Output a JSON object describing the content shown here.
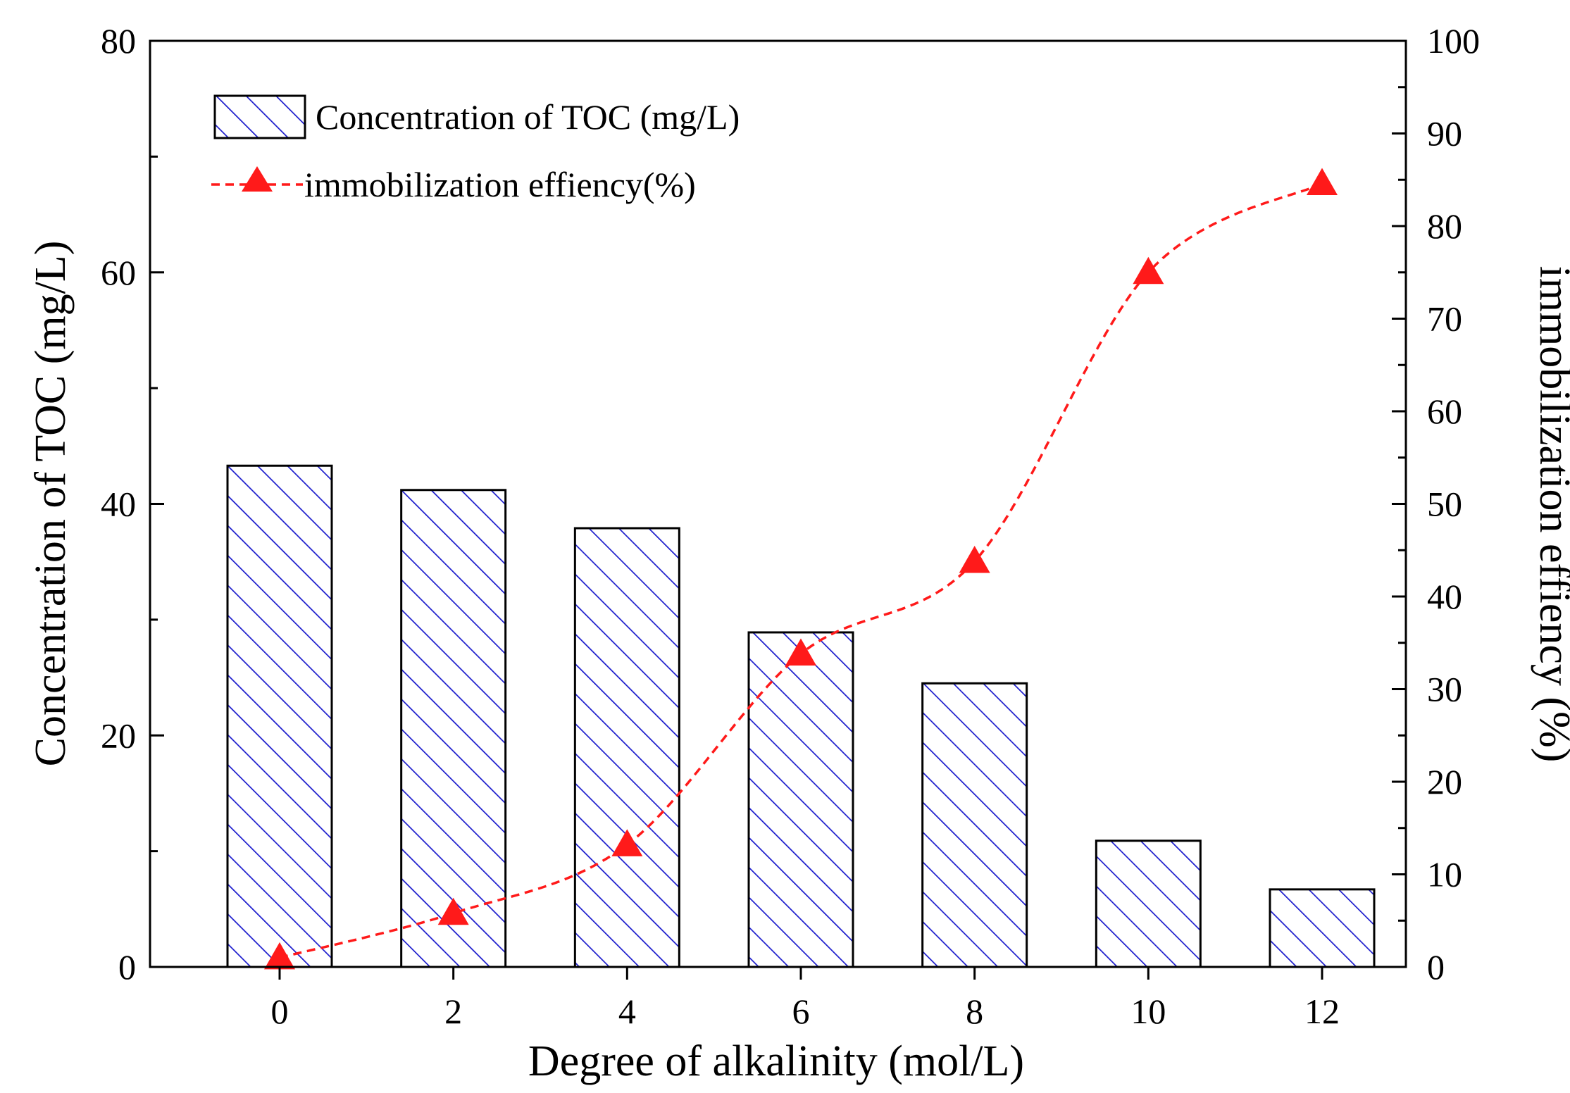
{
  "chart_data": {
    "type": "bar",
    "xlabel": "Degree of alkalinity (mol/L)",
    "ylabel": "Concentration of TOC (mg/L)",
    "y2label": "immobilization effiency (%)",
    "categories": [
      "0",
      "2",
      "4",
      "6",
      "8",
      "10",
      "12"
    ],
    "ylim": [
      0,
      80
    ],
    "y2lim": [
      0,
      100
    ],
    "yticks": [
      "0",
      "20",
      "40",
      "60",
      "80"
    ],
    "y2ticks": [
      "0",
      "10",
      "20",
      "30",
      "40",
      "50",
      "60",
      "70",
      "80",
      "90",
      "100"
    ],
    "series": [
      {
        "name": "Concentration of TOC (mg/L)",
        "type": "bar",
        "axis": "left",
        "values": [
          43.3,
          41.2,
          37.9,
          28.9,
          24.5,
          10.9,
          6.7
        ],
        "color": "#1a1acc",
        "pattern": "diagonal-hatch"
      },
      {
        "name": "immobilization effiency(%)",
        "type": "line",
        "axis": "right",
        "marker": "triangle",
        "linestyle": "dashed-spline",
        "values": [
          1.0,
          5.8,
          13.2,
          33.8,
          43.8,
          75.0,
          84.6
        ],
        "color": "#ff1a1a"
      }
    ],
    "legend": "top-left"
  }
}
